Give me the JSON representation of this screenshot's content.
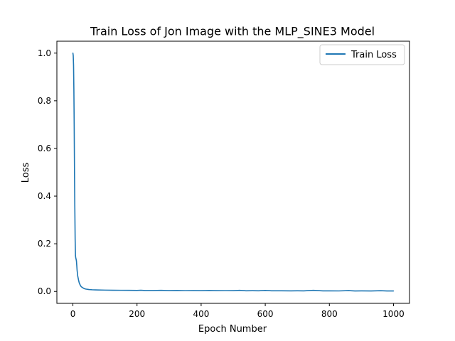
{
  "chart_data": {
    "type": "line",
    "title": "Train Loss of Jon Image with the MLP_SINE3 Model",
    "xlabel": "Epoch Number",
    "ylabel": "Loss",
    "xlim": [
      -50,
      1050
    ],
    "ylim": [
      -0.05,
      1.05
    ],
    "xticks": [
      0,
      200,
      400,
      600,
      800,
      1000
    ],
    "yticks": [
      0.0,
      0.2,
      0.4,
      0.6,
      0.8,
      1.0
    ],
    "xtick_labels": [
      "0",
      "200",
      "400",
      "600",
      "800",
      "1000"
    ],
    "ytick_labels": [
      "0.0",
      "0.2",
      "0.4",
      "0.6",
      "0.8",
      "1.0"
    ],
    "grid": false,
    "legend_position": "top-right",
    "series": [
      {
        "name": "Train Loss",
        "color": "#1f77b4",
        "x": [
          0,
          1,
          2,
          3,
          4,
          5,
          6,
          7,
          8,
          9,
          10,
          11,
          12,
          13,
          15,
          18,
          20,
          23,
          26,
          30,
          35,
          40,
          50,
          60,
          70,
          80,
          100,
          125,
          150,
          175,
          200,
          212,
          225,
          250,
          275,
          300,
          325,
          350,
          375,
          400,
          425,
          450,
          475,
          500,
          520,
          540,
          560,
          580,
          600,
          620,
          650,
          680,
          700,
          720,
          750,
          780,
          800,
          830,
          860,
          880,
          900,
          930,
          960,
          980,
          1000
        ],
        "y": [
          1.0,
          0.99,
          0.95,
          0.85,
          0.7,
          0.5,
          0.35,
          0.22,
          0.15,
          0.14,
          0.135,
          0.128,
          0.11,
          0.09,
          0.065,
          0.045,
          0.035,
          0.026,
          0.02,
          0.016,
          0.012,
          0.01,
          0.008,
          0.007,
          0.0065,
          0.006,
          0.0055,
          0.005,
          0.0048,
          0.0045,
          0.0042,
          0.005,
          0.004,
          0.0038,
          0.0045,
          0.0035,
          0.0038,
          0.0033,
          0.0036,
          0.0032,
          0.004,
          0.0031,
          0.0033,
          0.003,
          0.0045,
          0.0028,
          0.003,
          0.0027,
          0.0042,
          0.0026,
          0.0028,
          0.0025,
          0.0027,
          0.0024,
          0.0045,
          0.0023,
          0.0025,
          0.0022,
          0.0035,
          0.0021,
          0.0023,
          0.0021,
          0.003,
          0.002,
          0.002
        ]
      }
    ]
  }
}
